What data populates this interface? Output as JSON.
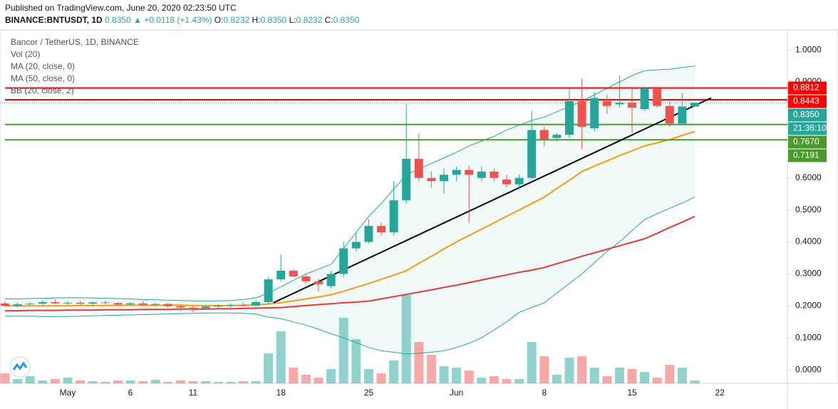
{
  "header": {
    "published": "Published on TradingView.com, June 20, 2020 02:23:50 UTC",
    "symbol": "BINANCE:BNTUSDT, 1D",
    "last": "0.8350",
    "change": "▲ +0.0118 (+1.43%)",
    "ohlc": [
      {
        "label": "O:",
        "value": "0.8232"
      },
      {
        "label": "H:",
        "value": "0.8350"
      },
      {
        "label": "L:",
        "value": "0.8232"
      },
      {
        "label": "C:",
        "value": "0.8350"
      }
    ]
  },
  "legend": [
    "Bancor / TetherUS, 1D, BINANCE",
    "Vol (20)",
    "MA (20, close, 0)",
    "MA (50, close, 0)",
    "BB (20, close, 2)"
  ],
  "chart_data": {
    "type": "candlestick",
    "categories": [
      null,
      null,
      null,
      null,
      null,
      "May",
      null,
      null,
      null,
      null,
      "6",
      null,
      null,
      null,
      null,
      "11",
      null,
      null,
      null,
      null,
      null,
      null,
      "18",
      null,
      null,
      null,
      null,
      null,
      null,
      "25",
      null,
      null,
      null,
      null,
      null,
      null,
      "Jun",
      null,
      null,
      null,
      null,
      null,
      null,
      "8",
      null,
      null,
      null,
      null,
      null,
      null,
      "15",
      null,
      null,
      null,
      null,
      null,
      null,
      "22"
    ],
    "open": [
      0.208,
      0.2,
      0.205,
      0.207,
      0.212,
      0.208,
      0.21,
      0.207,
      0.211,
      0.209,
      0.205,
      0.208,
      0.204,
      0.206,
      0.199,
      0.195,
      0.193,
      0.198,
      0.201,
      0.203,
      0.201,
      0.212,
      0.283,
      0.31,
      0.292,
      0.277,
      0.262,
      0.3,
      0.38,
      0.4,
      0.45,
      0.43,
      0.53,
      0.66,
      0.6,
      0.59,
      0.61,
      0.625,
      0.6,
      0.62,
      0.595,
      0.58,
      0.6,
      0.75,
      0.725,
      0.735,
      0.84,
      0.755,
      0.84,
      0.83,
      0.835,
      0.815,
      0.88,
      0.825,
      0.77,
      0.8232,
      null,
      null
    ],
    "high": [
      0.215,
      0.21,
      0.212,
      0.218,
      0.22,
      0.215,
      0.216,
      0.214,
      0.218,
      0.213,
      0.212,
      0.214,
      0.21,
      0.211,
      0.205,
      0.2,
      0.202,
      0.205,
      0.208,
      0.21,
      0.218,
      0.29,
      0.36,
      0.315,
      0.3,
      0.285,
      0.31,
      0.4,
      0.43,
      0.47,
      0.46,
      0.59,
      0.833,
      0.74,
      0.62,
      0.63,
      0.635,
      0.64,
      0.635,
      0.63,
      0.61,
      0.61,
      0.81,
      0.76,
      0.74,
      0.88,
      0.91,
      0.87,
      0.86,
      0.92,
      0.88,
      0.885,
      0.885,
      0.84,
      0.865,
      0.835,
      null,
      null
    ],
    "low": [
      0.198,
      0.196,
      0.2,
      0.202,
      0.205,
      0.203,
      0.204,
      0.202,
      0.205,
      0.201,
      0.2,
      0.202,
      0.198,
      0.195,
      0.185,
      0.18,
      0.188,
      0.192,
      0.195,
      0.198,
      0.198,
      0.205,
      0.275,
      0.29,
      0.27,
      0.245,
      0.255,
      0.29,
      0.37,
      0.395,
      0.42,
      0.42,
      0.52,
      0.59,
      0.57,
      0.55,
      0.59,
      0.46,
      0.59,
      0.59,
      0.57,
      0.565,
      0.595,
      0.7,
      0.715,
      0.725,
      0.69,
      0.745,
      0.8,
      0.82,
      0.74,
      0.81,
      0.82,
      0.76,
      0.765,
      0.8232,
      null,
      null
    ],
    "close": [
      0.2,
      0.205,
      0.207,
      0.212,
      0.208,
      0.21,
      0.207,
      0.211,
      0.209,
      0.205,
      0.208,
      0.204,
      0.206,
      0.199,
      0.195,
      0.193,
      0.198,
      0.201,
      0.203,
      0.201,
      0.212,
      0.283,
      0.31,
      0.292,
      0.277,
      0.268,
      0.3,
      0.38,
      0.4,
      0.45,
      0.43,
      0.53,
      0.66,
      0.6,
      0.59,
      0.61,
      0.625,
      0.61,
      0.62,
      0.6,
      0.58,
      0.6,
      0.75,
      0.72,
      0.735,
      0.84,
      0.76,
      0.85,
      0.825,
      0.835,
      0.82,
      0.88,
      0.825,
      0.77,
      0.8232,
      0.835,
      null,
      null
    ],
    "volume": [
      14,
      6,
      10,
      4,
      6,
      8,
      4,
      3,
      2,
      4,
      4,
      3,
      5,
      2,
      4,
      3,
      3,
      2,
      2,
      3,
      3,
      42,
      73,
      22,
      12,
      8,
      20,
      92,
      62,
      20,
      14,
      32,
      124,
      58,
      40,
      24,
      22,
      18,
      8,
      10,
      6,
      6,
      58,
      38,
      12,
      36,
      38,
      22,
      10,
      22,
      20,
      16,
      8,
      26,
      22,
      4,
      null,
      null
    ],
    "volume_lim": [
      0,
      140
    ],
    "lines": [
      {
        "name": "MA (20, close, 0)",
        "color": "#f39c12",
        "values": [
          0.2,
          0.2,
          0.2,
          0.2,
          0.2,
          0.2,
          0.201,
          0.201,
          0.201,
          0.202,
          0.202,
          0.202,
          0.202,
          0.202,
          0.202,
          0.201,
          0.201,
          0.201,
          0.201,
          0.202,
          0.203,
          0.206,
          0.21,
          0.216,
          0.222,
          0.228,
          0.235,
          0.246,
          0.258,
          0.27,
          0.283,
          0.296,
          0.31,
          0.333,
          0.355,
          0.378,
          0.4,
          0.42,
          0.44,
          0.46,
          0.48,
          0.5,
          0.52,
          0.54,
          0.567,
          0.593,
          0.62,
          0.637,
          0.653,
          0.67,
          0.685,
          0.7,
          0.71,
          0.72,
          0.733,
          0.745,
          null,
          null
        ]
      },
      {
        "name": "MA (50, close, 0)",
        "color": "#e53935",
        "values": [
          0.185,
          0.185,
          0.186,
          0.186,
          0.186,
          0.187,
          0.187,
          0.187,
          0.188,
          0.188,
          0.188,
          0.189,
          0.189,
          0.189,
          0.19,
          0.19,
          0.19,
          0.191,
          0.191,
          0.192,
          0.193,
          0.194,
          0.195,
          0.198,
          0.201,
          0.204,
          0.207,
          0.21,
          0.212,
          0.215,
          0.222,
          0.229,
          0.236,
          0.243,
          0.25,
          0.258,
          0.265,
          0.273,
          0.281,
          0.289,
          0.297,
          0.305,
          0.312,
          0.32,
          0.332,
          0.343,
          0.355,
          0.366,
          0.377,
          0.388,
          0.399,
          0.41,
          0.427,
          0.445,
          0.462,
          0.48,
          null,
          null
        ]
      }
    ],
    "bb": {
      "color": "#26a69a",
      "upper": [
        0.222,
        0.222,
        0.223,
        0.224,
        0.225,
        0.226,
        0.226,
        0.225,
        0.224,
        0.223,
        0.222,
        0.22,
        0.219,
        0.218,
        0.217,
        0.216,
        0.216,
        0.216,
        0.217,
        0.22,
        0.225,
        0.24,
        0.26,
        0.28,
        0.3,
        0.315,
        0.33,
        0.38,
        0.43,
        0.48,
        0.52,
        0.565,
        0.61,
        0.628,
        0.645,
        0.663,
        0.68,
        0.7,
        0.715,
        0.73,
        0.75,
        0.765,
        0.78,
        0.79,
        0.807,
        0.823,
        0.84,
        0.86,
        0.88,
        0.9,
        0.92,
        0.935,
        0.938,
        0.94,
        0.945,
        0.95,
        null,
        null
      ],
      "lower": [
        0.168,
        0.168,
        0.168,
        0.167,
        0.167,
        0.167,
        0.168,
        0.169,
        0.17,
        0.171,
        0.172,
        0.173,
        0.174,
        0.175,
        0.176,
        0.177,
        0.178,
        0.178,
        0.178,
        0.177,
        0.175,
        0.165,
        0.16,
        0.15,
        0.14,
        0.127,
        0.113,
        0.1,
        0.085,
        0.07,
        0.06,
        0.055,
        0.05,
        0.052,
        0.055,
        0.06,
        0.07,
        0.083,
        0.1,
        0.125,
        0.15,
        0.18,
        0.195,
        0.21,
        0.24,
        0.27,
        0.3,
        0.335,
        0.37,
        0.4,
        0.435,
        0.47,
        0.488,
        0.505,
        0.522,
        0.54,
        null,
        null
      ]
    },
    "trendline": [
      0.21,
      0.85
    ],
    "levels": [
      {
        "value": 0.8812,
        "color": "#ff0000"
      },
      {
        "value": 0.8443,
        "color": "#ff0000"
      },
      {
        "value": 0.767,
        "label": "0.7670",
        "color": "#4a9a2c"
      },
      {
        "value": 0.7191,
        "color": "#4a9a2c"
      }
    ],
    "last_price": {
      "value": 0.835,
      "label": "0.8350"
    },
    "countdown": "21:36:10",
    "up_color": "#26a69a",
    "down_color": "#ef5350",
    "ylim": [
      -0.042,
      1.056
    ],
    "yticks": [
      {
        "value": 0,
        "label": "0.0000"
      },
      {
        "value": 0.1,
        "label": "0.1000"
      },
      {
        "value": 0.2,
        "label": "0.2000"
      },
      {
        "value": 0.3,
        "label": "0.3000"
      },
      {
        "value": 0.4,
        "label": "0.4000"
      },
      {
        "value": 0.5,
        "label": "0.5000"
      },
      {
        "value": 0.6,
        "label": "0.6000"
      },
      {
        "value": 0.7,
        "label": "0.7000"
      },
      {
        "value": 0.8,
        "label": "0.8000"
      },
      {
        "value": 0.9,
        "label": "0.9000"
      },
      {
        "value": 1,
        "label": "1.0000"
      }
    ],
    "grid": false
  }
}
